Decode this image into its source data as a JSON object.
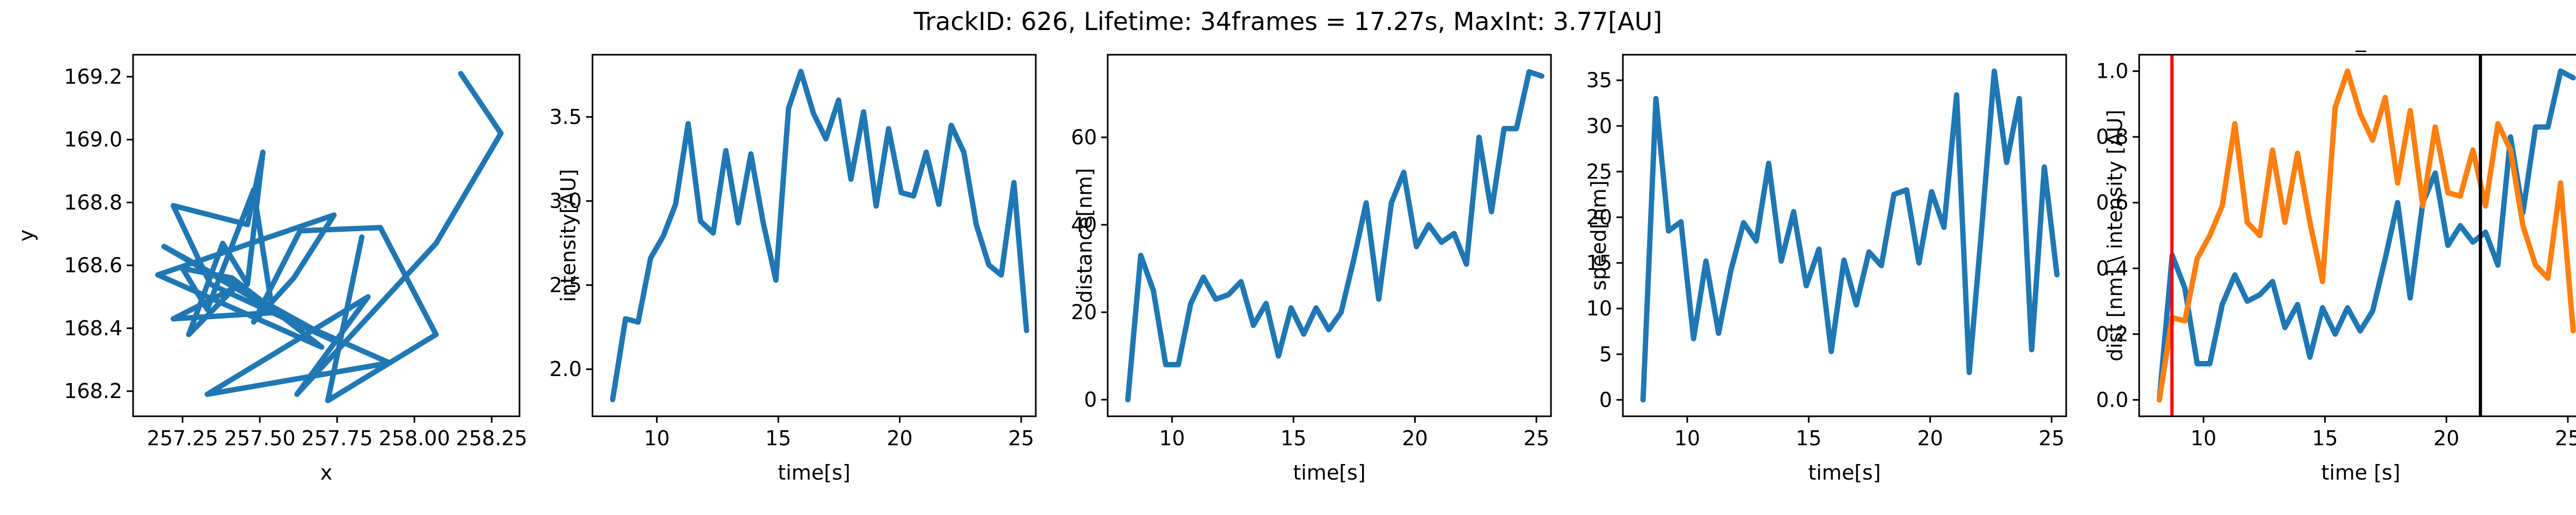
{
  "figure": {
    "suptitle": "TrackID: 626, Lifetime: 34frames = 17.27s, MaxInt: 3.77[AU]"
  },
  "chart_data": [
    {
      "type": "line",
      "title": "",
      "xlabel": "x",
      "ylabel": "y",
      "xlim": [
        257.09,
        258.34
      ],
      "ylim": [
        168.12,
        169.27
      ],
      "xticks": [
        257.25,
        257.5,
        257.75,
        258.0,
        258.25
      ],
      "xtick_labels": [
        "257.25",
        "257.50",
        "257.75",
        "258.00",
        "258.25"
      ],
      "yticks": [
        168.2,
        168.4,
        168.6,
        168.8,
        169.0,
        169.2
      ],
      "ytick_labels": [
        "168.2",
        "168.4",
        "168.6",
        "168.8",
        "169.0",
        "169.2"
      ],
      "grid": false,
      "series": [
        {
          "color": "#1f77b4",
          "x": [
            258.15,
            258.28,
            258.07,
            257.62,
            257.85,
            257.33,
            257.92,
            257.55,
            257.22,
            257.42,
            257.27,
            257.38,
            257.46,
            257.51,
            257.46,
            257.22,
            257.34,
            257.74,
            257.19,
            257.54,
            257.48,
            257.33,
            257.25,
            257.41,
            257.7,
            257.17,
            257.74,
            257.61,
            257.48,
            257.63,
            257.89,
            258.07,
            257.72,
            257.83
          ],
          "y": [
            169.21,
            169.02,
            168.67,
            168.19,
            168.5,
            168.19,
            168.29,
            168.45,
            168.43,
            168.53,
            168.38,
            168.67,
            168.54,
            168.96,
            168.73,
            168.79,
            168.54,
            168.36,
            168.66,
            168.46,
            168.84,
            168.46,
            168.59,
            168.56,
            168.34,
            168.57,
            168.76,
            168.56,
            168.42,
            168.71,
            168.72,
            168.38,
            168.17,
            168.69
          ]
        }
      ]
    },
    {
      "type": "line",
      "title": "",
      "xlabel": "time[s]",
      "ylabel": "intensity[AU]",
      "xlim": [
        7.35,
        25.6
      ],
      "ylim": [
        1.72,
        3.87
      ],
      "xticks": [
        10,
        15,
        20,
        25
      ],
      "yticks": [
        2.0,
        2.5,
        3.0,
        3.5
      ],
      "ytick_labels": [
        "2.0",
        "2.5",
        "3.0",
        "3.5"
      ],
      "grid": false,
      "series": [
        {
          "color": "#1f77b4",
          "x": [
            8.18,
            8.71,
            9.23,
            9.74,
            10.26,
            10.77,
            11.29,
            11.8,
            12.32,
            12.84,
            13.35,
            13.87,
            14.38,
            14.9,
            15.42,
            15.93,
            16.45,
            16.96,
            17.48,
            17.99,
            18.51,
            19.03,
            19.54,
            20.06,
            20.57,
            21.09,
            21.61,
            22.12,
            22.64,
            23.15,
            23.67,
            24.18,
            24.7,
            25.22
          ],
          "y": [
            1.82,
            2.3,
            2.28,
            2.66,
            2.79,
            2.98,
            3.46,
            2.88,
            2.81,
            3.3,
            2.87,
            3.28,
            2.87,
            2.53,
            3.55,
            3.77,
            3.52,
            3.37,
            3.6,
            3.13,
            3.53,
            2.97,
            3.43,
            3.05,
            3.03,
            3.29,
            2.98,
            3.45,
            3.29,
            2.86,
            2.62,
            2.56,
            3.11,
            2.23
          ]
        }
      ]
    },
    {
      "type": "line",
      "title": "",
      "xlabel": "time[s]",
      "ylabel": "distance[nm]",
      "xlim": [
        7.35,
        25.6
      ],
      "ylim": [
        -3.8,
        78.9
      ],
      "xticks": [
        10,
        15,
        20,
        25
      ],
      "yticks": [
        0,
        20,
        40,
        60
      ],
      "grid": false,
      "series": [
        {
          "color": "#1f77b4",
          "x": [
            8.18,
            8.71,
            9.23,
            9.74,
            10.26,
            10.77,
            11.29,
            11.8,
            12.32,
            12.84,
            13.35,
            13.87,
            14.38,
            14.9,
            15.42,
            15.93,
            16.45,
            16.96,
            17.48,
            17.99,
            18.51,
            19.03,
            19.54,
            20.06,
            20.57,
            21.09,
            21.61,
            22.12,
            22.64,
            23.15,
            23.67,
            24.18,
            24.7,
            25.22
          ],
          "y": [
            0,
            33,
            25,
            8,
            8,
            22,
            28,
            23,
            24,
            27,
            17,
            22,
            10,
            21,
            15,
            21,
            16,
            20,
            32,
            45,
            23,
            45,
            52,
            35,
            40,
            36,
            38,
            31,
            60,
            43,
            62,
            62,
            75,
            74
          ]
        }
      ]
    },
    {
      "type": "line",
      "title": "",
      "xlabel": "time[s]",
      "ylabel": "speed[nm]",
      "xlim": [
        7.35,
        25.6
      ],
      "ylim": [
        -1.8,
        37.8
      ],
      "xticks": [
        10,
        15,
        20,
        25
      ],
      "yticks": [
        0,
        5,
        10,
        15,
        20,
        25,
        30,
        35
      ],
      "grid": false,
      "series": [
        {
          "color": "#1f77b4",
          "x": [
            8.18,
            8.71,
            9.23,
            9.74,
            10.26,
            10.77,
            11.29,
            11.8,
            12.32,
            12.84,
            13.35,
            13.87,
            14.38,
            14.9,
            15.42,
            15.93,
            16.45,
            16.96,
            17.48,
            17.99,
            18.51,
            19.03,
            19.54,
            20.06,
            20.57,
            21.09,
            21.61,
            22.12,
            22.64,
            23.15,
            23.67,
            24.18,
            24.7,
            25.22
          ],
          "y": [
            0,
            33,
            18.5,
            19.5,
            6.7,
            15.2,
            7.3,
            14.2,
            19.4,
            17.4,
            25.9,
            15.2,
            20.6,
            12.5,
            16.5,
            5.3,
            15.3,
            10.4,
            16.2,
            14.7,
            22.5,
            23.0,
            15.0,
            22.8,
            18.9,
            33.4,
            3.0,
            18.7,
            36.0,
            26.0,
            33.0,
            5.5,
            25.5,
            13.7
          ]
        }
      ]
    },
    {
      "type": "line",
      "title": "_",
      "xlabel": "time [s]",
      "ylabel": "dist [nm] \\ intensity [AU]",
      "xlim": [
        7.35,
        25.6
      ],
      "ylim": [
        -0.05,
        1.05
      ],
      "xticks": [
        10,
        15,
        20,
        25
      ],
      "yticks": [
        0.0,
        0.2,
        0.4,
        0.6,
        0.8,
        1.0
      ],
      "ytick_labels": [
        "0.0",
        "0.2",
        "0.4",
        "0.6",
        "0.8",
        "1.0"
      ],
      "grid": false,
      "vlines": [
        {
          "x": 8.7,
          "color": "#ff0000"
        },
        {
          "x": 21.4,
          "color": "#000000"
        }
      ],
      "series": [
        {
          "color": "#1f77b4",
          "x": [
            8.18,
            8.71,
            9.23,
            9.74,
            10.26,
            10.77,
            11.29,
            11.8,
            12.32,
            12.84,
            13.35,
            13.87,
            14.38,
            14.9,
            15.42,
            15.93,
            16.45,
            16.96,
            17.48,
            17.99,
            18.51,
            19.03,
            19.54,
            20.06,
            20.57,
            21.09,
            21.61,
            22.12,
            22.64,
            23.15,
            23.67,
            24.18,
            24.7,
            25.22
          ],
          "y": [
            0.0,
            0.44,
            0.34,
            0.11,
            0.11,
            0.29,
            0.38,
            0.3,
            0.32,
            0.36,
            0.22,
            0.29,
            0.13,
            0.28,
            0.2,
            0.28,
            0.21,
            0.27,
            0.43,
            0.6,
            0.31,
            0.6,
            0.69,
            0.47,
            0.53,
            0.48,
            0.51,
            0.41,
            0.8,
            0.57,
            0.83,
            0.83,
            1.0,
            0.98
          ]
        },
        {
          "color": "#ff7f0e",
          "x": [
            8.18,
            8.71,
            9.23,
            9.74,
            10.26,
            10.77,
            11.29,
            11.8,
            12.32,
            12.84,
            13.35,
            13.87,
            14.38,
            14.9,
            15.42,
            15.93,
            16.45,
            16.96,
            17.48,
            17.99,
            18.51,
            19.03,
            19.54,
            20.06,
            20.57,
            21.09,
            21.61,
            22.12,
            22.64,
            23.15,
            23.67,
            24.18,
            24.7,
            25.22
          ],
          "y": [
            0.0,
            0.25,
            0.24,
            0.43,
            0.5,
            0.59,
            0.84,
            0.54,
            0.5,
            0.76,
            0.54,
            0.75,
            0.54,
            0.36,
            0.89,
            1.0,
            0.87,
            0.79,
            0.92,
            0.66,
            0.88,
            0.59,
            0.83,
            0.63,
            0.62,
            0.76,
            0.59,
            0.84,
            0.76,
            0.53,
            0.41,
            0.37,
            0.66,
            0.21
          ]
        }
      ]
    }
  ]
}
